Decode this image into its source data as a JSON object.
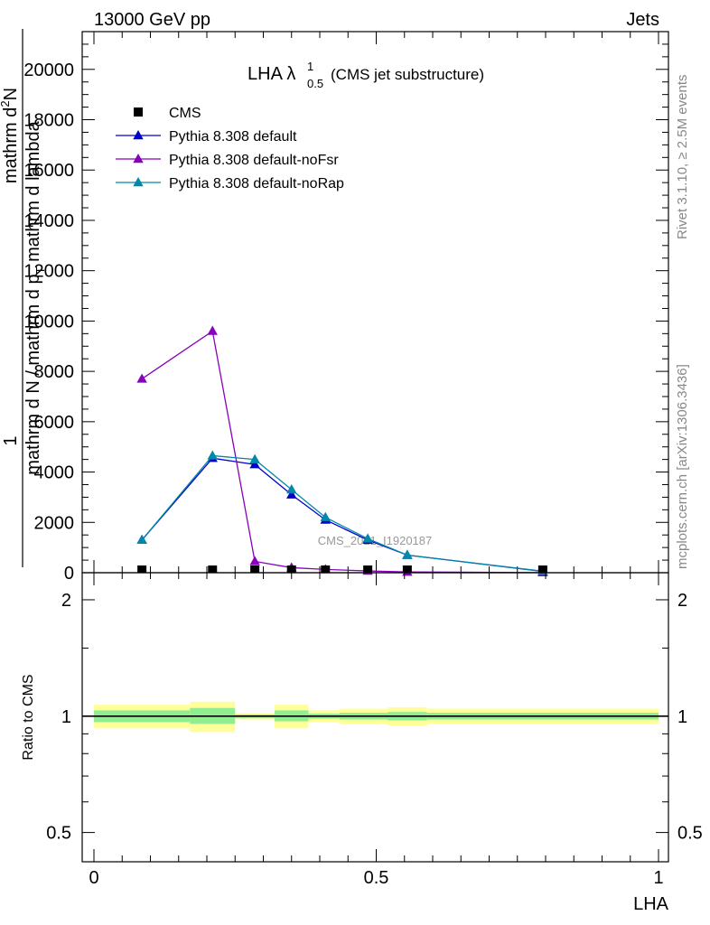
{
  "header": {
    "left_label": "13000 GeV pp",
    "right_label": "Jets"
  },
  "side_labels": {
    "rivet": "Rivet 3.1.10, ≥ 2.5M events",
    "mcplots": "mcplots.cern.ch [arXiv:1306.3436]"
  },
  "watermark": "CMS_2021_I1920187",
  "chart_data": [
    {
      "type": "line",
      "title_main": "LHA λ",
      "title_sup": "1",
      "title_sub": "0.5",
      "title_suffix": "(CMS jet substructure)",
      "ylabel_top": "1",
      "ylabel_parts": [
        "mathrm d N / mathrm d p",
        "T",
        " mathrm d lambda",
        "mathrm d",
        "2",
        "N"
      ],
      "xlim": [
        0,
        1
      ],
      "ylim": [
        0,
        21500
      ],
      "yticks": [
        0,
        2000,
        4000,
        6000,
        8000,
        10000,
        12000,
        14000,
        16000,
        18000,
        20000
      ],
      "yticklabels": [
        "0",
        "2000",
        "4000",
        "6000",
        "8000",
        "10000",
        "12000",
        "14000",
        "16000",
        "18000",
        "20000"
      ],
      "legend_position": "top-left",
      "series": [
        {
          "name": "CMS",
          "marker": "square",
          "color": "#000000",
          "x": [
            0.085,
            0.21,
            0.285,
            0.35,
            0.41,
            0.485,
            0.555,
            0.795
          ],
          "values": [
            40,
            50,
            50,
            40,
            30,
            25,
            20,
            10
          ]
        },
        {
          "name": "Pythia 8.308 default",
          "marker": "triangle",
          "color": "#0000cc",
          "x": [
            0.085,
            0.21,
            0.285,
            0.35,
            0.41,
            0.485,
            0.555,
            0.795
          ],
          "values": [
            1300,
            4550,
            4300,
            3100,
            2100,
            1300,
            700,
            50
          ]
        },
        {
          "name": "Pythia 8.308 default-noFsr",
          "marker": "triangle",
          "color": "#8800bb",
          "x": [
            0.085,
            0.21,
            0.285,
            0.35,
            0.41,
            0.485,
            0.555,
            0.795
          ],
          "values": [
            7700,
            9600,
            450,
            200,
            130,
            70,
            30,
            5
          ]
        },
        {
          "name": "Pythia 8.308 default-noRap",
          "marker": "triangle",
          "color": "#0088aa",
          "x": [
            0.085,
            0.21,
            0.285,
            0.35,
            0.41,
            0.485,
            0.555,
            0.795
          ],
          "values": [
            1300,
            4650,
            4500,
            3300,
            2200,
            1350,
            700,
            60
          ]
        }
      ]
    },
    {
      "type": "area",
      "ylabel": "Ratio to CMS",
      "xlabel": "LHA",
      "xlim": [
        0,
        1
      ],
      "xticks": [
        0,
        0.5,
        1
      ],
      "xticklabels": [
        "0",
        "0.5",
        "1"
      ],
      "ylim": [
        0.42,
        2.35
      ],
      "log_scale": true,
      "yticks": [
        0.5,
        1,
        2
      ],
      "yticklabels": [
        "0.5",
        "1",
        "2"
      ],
      "bands": [
        {
          "x0": 0.0,
          "x1": 0.17,
          "stat_lo": 0.965,
          "stat_hi": 1.035,
          "tot_lo": 0.93,
          "tot_hi": 1.07
        },
        {
          "x0": 0.17,
          "x1": 0.25,
          "stat_lo": 0.955,
          "stat_hi": 1.05,
          "tot_lo": 0.91,
          "tot_hi": 1.09
        },
        {
          "x0": 0.25,
          "x1": 0.32,
          "stat_lo": 0.99,
          "stat_hi": 1.01,
          "tot_lo": 0.98,
          "tot_hi": 1.02
        },
        {
          "x0": 0.32,
          "x1": 0.38,
          "stat_lo": 0.97,
          "stat_hi": 1.035,
          "tot_lo": 0.93,
          "tot_hi": 1.07
        },
        {
          "x0": 0.38,
          "x1": 0.435,
          "stat_lo": 0.985,
          "stat_hi": 1.015,
          "tot_lo": 0.965,
          "tot_hi": 1.035
        },
        {
          "x0": 0.435,
          "x1": 0.52,
          "stat_lo": 0.98,
          "stat_hi": 1.02,
          "tot_lo": 0.955,
          "tot_hi": 1.045
        },
        {
          "x0": 0.52,
          "x1": 0.59,
          "stat_lo": 0.975,
          "stat_hi": 1.025,
          "tot_lo": 0.945,
          "tot_hi": 1.055
        },
        {
          "x0": 0.59,
          "x1": 1.0,
          "stat_lo": 0.98,
          "stat_hi": 1.02,
          "tot_lo": 0.955,
          "tot_hi": 1.045
        }
      ],
      "colors": {
        "stat": "#90ee90",
        "total": "#ffff99"
      }
    }
  ]
}
